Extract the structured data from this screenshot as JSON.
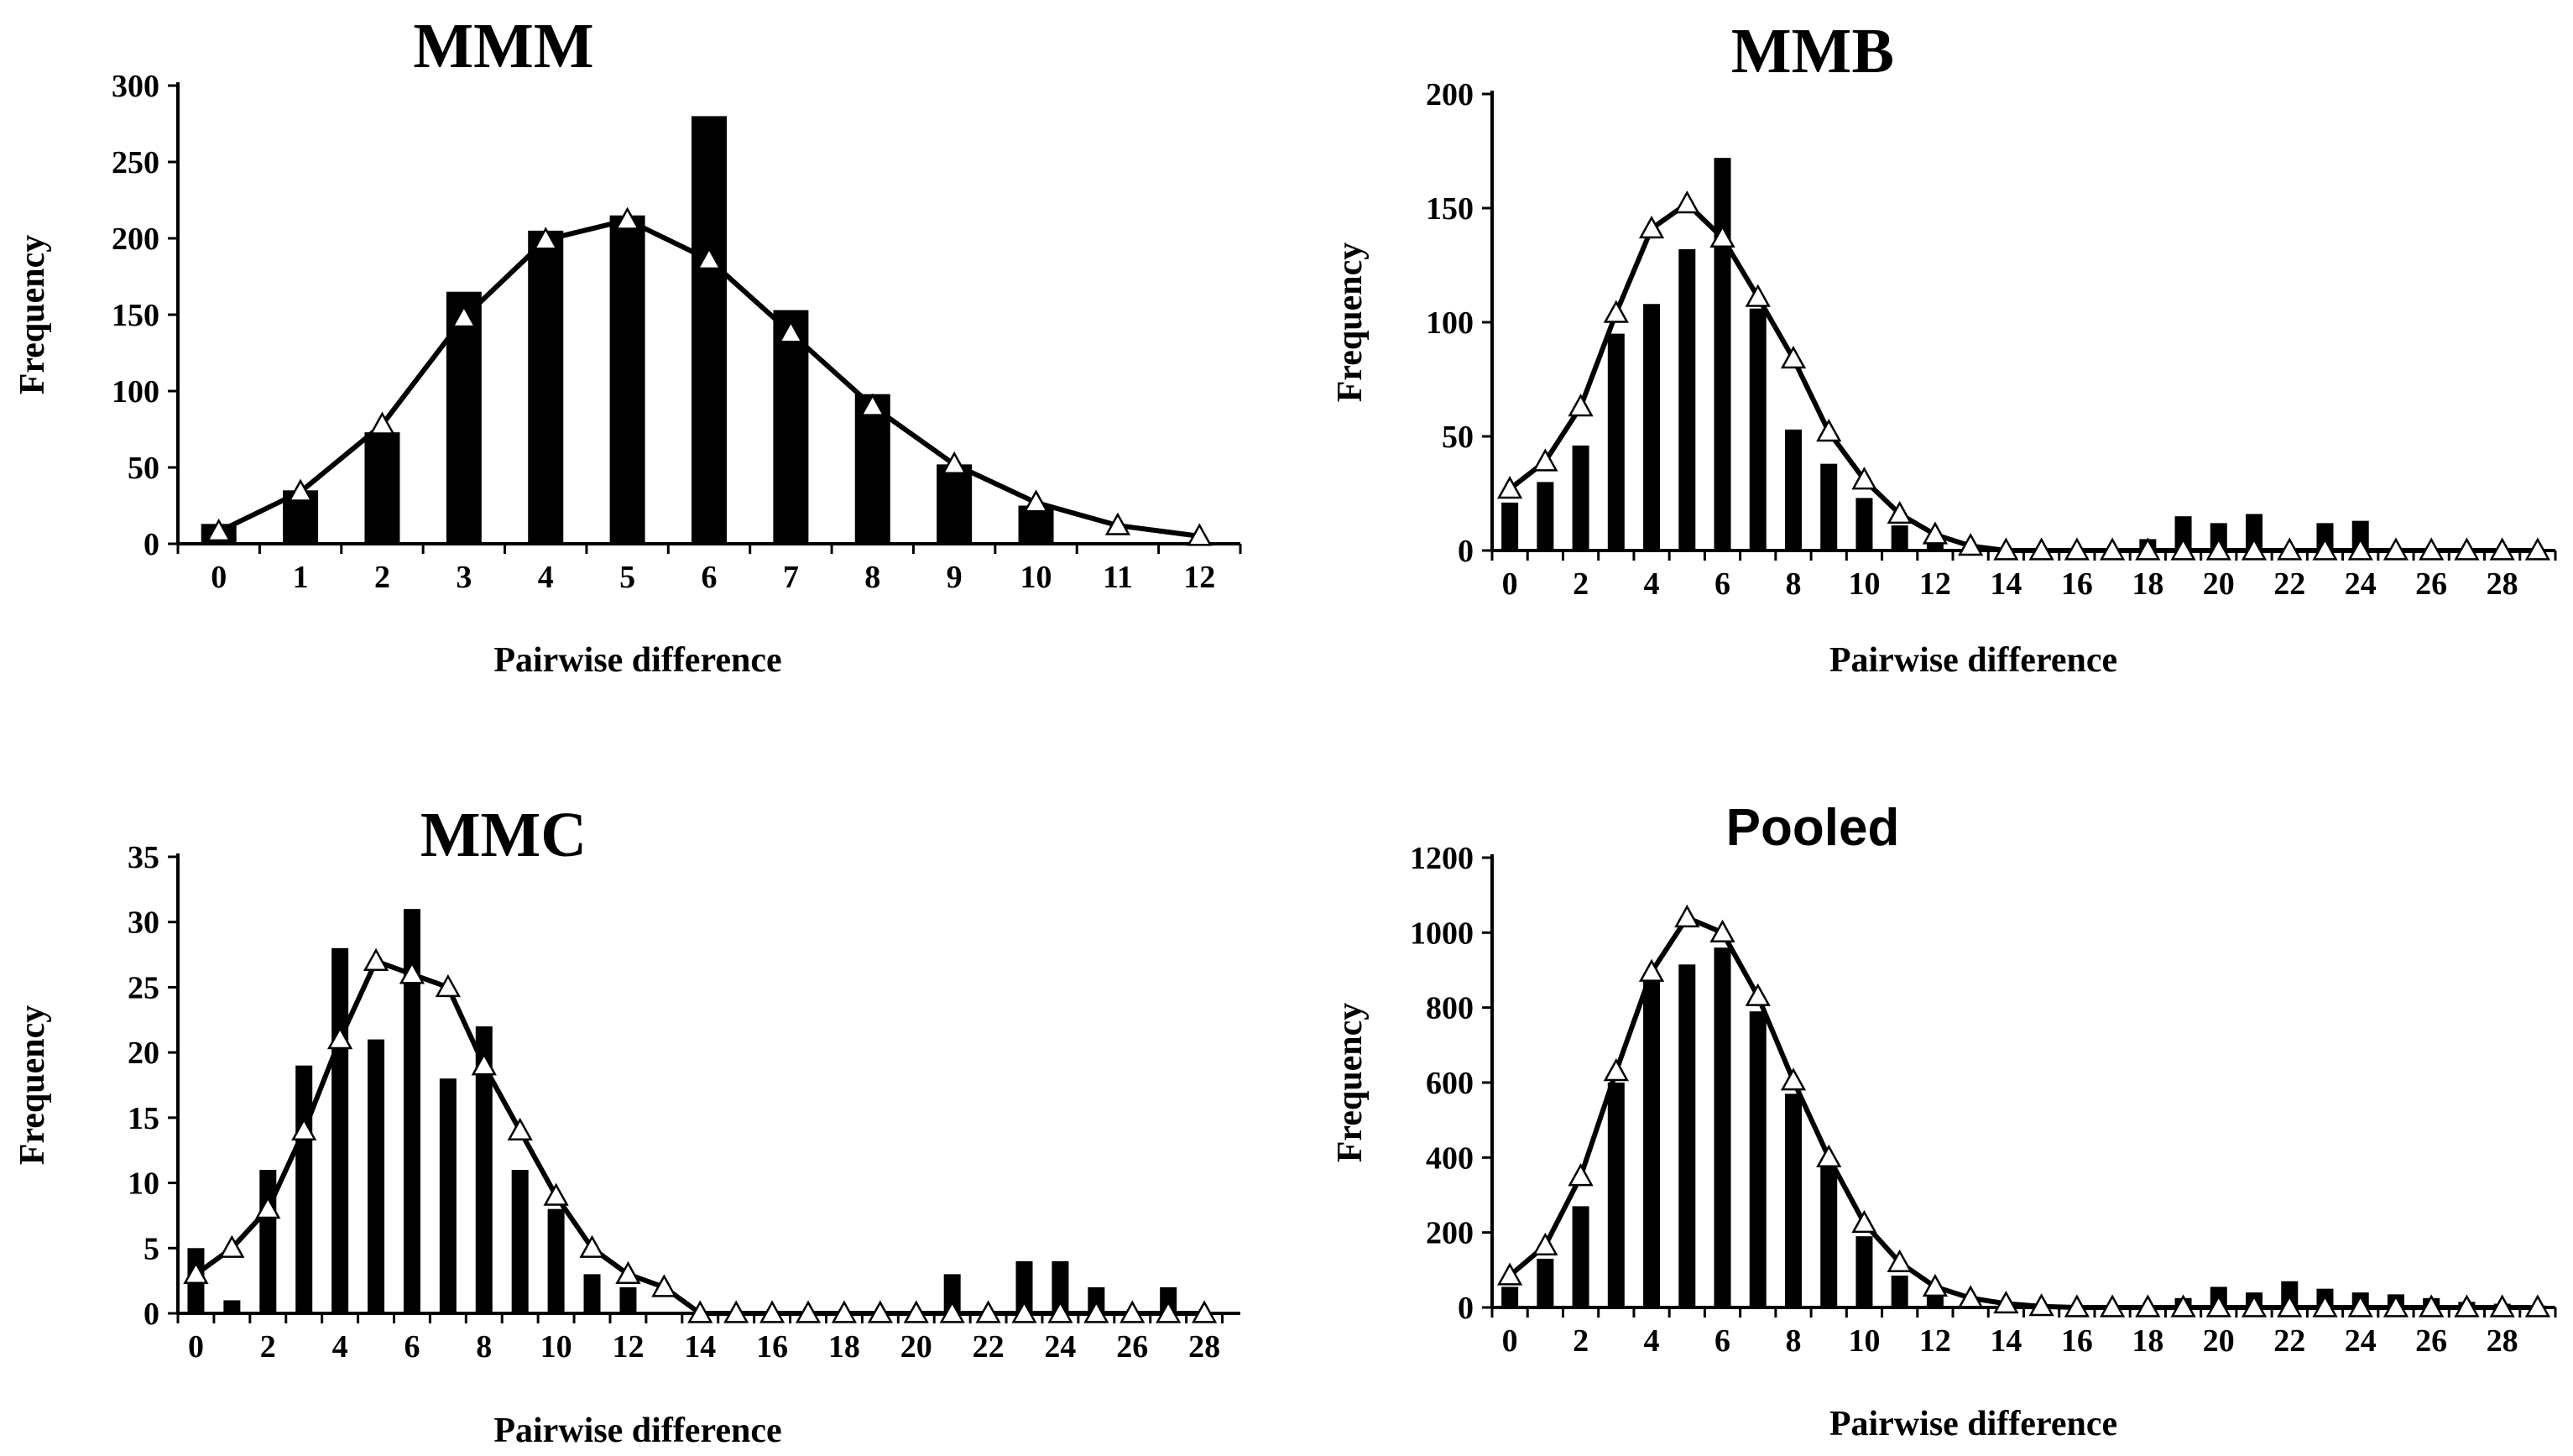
{
  "chart_data": [
    {
      "type": "bar",
      "title": "MMM",
      "xlabel": "Pairwise difference",
      "ylabel": "Frequency",
      "ylim": [
        0,
        300
      ],
      "yticks": [
        0,
        50,
        100,
        150,
        200,
        250,
        300
      ],
      "x": [
        0,
        1,
        2,
        3,
        4,
        5,
        6,
        7,
        8,
        9,
        10,
        11,
        12
      ],
      "xticks": [
        0,
        1,
        2,
        3,
        4,
        5,
        6,
        7,
        8,
        9,
        10,
        11,
        12
      ],
      "grid": false,
      "series": [
        {
          "kind": "bar",
          "values": [
            13,
            35,
            73,
            165,
            205,
            215,
            280,
            153,
            98,
            52,
            25,
            0,
            0
          ]
        },
        {
          "kind": "line",
          "values": [
            8,
            34,
            78,
            148,
            199,
            212,
            186,
            138,
            90,
            52,
            27,
            12,
            5
          ]
        }
      ]
    },
    {
      "type": "bar",
      "title": "MMB",
      "xlabel": "Pairwise difference",
      "ylabel": "Frequency",
      "ylim": [
        0,
        200
      ],
      "yticks": [
        0,
        50,
        100,
        150,
        200
      ],
      "x": [
        0,
        1,
        2,
        3,
        4,
        5,
        6,
        7,
        8,
        9,
        10,
        11,
        12,
        13,
        14,
        15,
        16,
        17,
        18,
        19,
        20,
        21,
        22,
        23,
        24,
        25,
        26,
        27,
        28,
        29
      ],
      "xticks": [
        0,
        2,
        4,
        6,
        8,
        10,
        12,
        14,
        16,
        18,
        20,
        22,
        24,
        26,
        28
      ],
      "grid": false,
      "series": [
        {
          "kind": "bar",
          "values": [
            21,
            30,
            46,
            95,
            108,
            132,
            172,
            106,
            53,
            38,
            23,
            11,
            3,
            0,
            0,
            0,
            0,
            0,
            5,
            15,
            12,
            16,
            0,
            12,
            13,
            0,
            0,
            0,
            0,
            0
          ]
        },
        {
          "kind": "line",
          "values": [
            27,
            39,
            63,
            104,
            141,
            152,
            137,
            111,
            84,
            52,
            31,
            16,
            7,
            2,
            0,
            0,
            0,
            0,
            0,
            0,
            0,
            0,
            0,
            0,
            0,
            0,
            0,
            0,
            0,
            0
          ]
        }
      ]
    },
    {
      "type": "bar",
      "title": "MMC",
      "xlabel": "Pairwise difference",
      "ylabel": "Frequency",
      "ylim": [
        0,
        35
      ],
      "yticks": [
        0,
        5,
        10,
        15,
        20,
        25,
        30,
        35
      ],
      "x": [
        0,
        1,
        2,
        3,
        4,
        5,
        6,
        7,
        8,
        9,
        10,
        11,
        12,
        13,
        14,
        15,
        16,
        17,
        18,
        19,
        20,
        21,
        22,
        23,
        24,
        25,
        26,
        27,
        28
      ],
      "xticks": [
        0,
        2,
        4,
        6,
        8,
        10,
        12,
        14,
        16,
        18,
        20,
        22,
        24,
        26,
        28
      ],
      "grid": false,
      "series": [
        {
          "kind": "bar",
          "values": [
            5,
            1,
            11,
            19,
            28,
            21,
            31,
            18,
            22,
            11,
            8,
            3,
            2,
            0,
            0,
            0,
            0,
            0,
            0,
            0,
            0,
            3,
            0,
            4,
            4,
            2,
            0,
            2,
            0
          ]
        },
        {
          "kind": "line",
          "values": [
            3,
            5,
            8,
            14,
            21,
            27,
            26,
            25,
            19,
            14,
            9,
            5,
            3,
            2,
            0,
            0,
            0,
            0,
            0,
            0,
            0,
            0,
            0,
            0,
            0,
            0,
            0,
            0,
            0
          ]
        }
      ]
    },
    {
      "type": "bar",
      "title": "Pooled",
      "xlabel": "Pairwise difference",
      "ylabel": "Frequency",
      "ylim": [
        0,
        1200
      ],
      "yticks": [
        0,
        200,
        400,
        600,
        800,
        1000,
        1200
      ],
      "x": [
        0,
        1,
        2,
        3,
        4,
        5,
        6,
        7,
        8,
        9,
        10,
        11,
        12,
        13,
        14,
        15,
        16,
        17,
        18,
        19,
        20,
        21,
        22,
        23,
        24,
        25,
        26,
        27,
        28,
        29
      ],
      "xticks": [
        0,
        2,
        4,
        6,
        8,
        10,
        12,
        14,
        16,
        18,
        20,
        22,
        24,
        26,
        28
      ],
      "grid": false,
      "series": [
        {
          "kind": "bar",
          "values": [
            55,
            130,
            270,
            600,
            870,
            915,
            960,
            790,
            570,
            380,
            190,
            85,
            35,
            10,
            0,
            0,
            0,
            0,
            5,
            25,
            55,
            40,
            70,
            50,
            40,
            35,
            25,
            15,
            10,
            5
          ]
        },
        {
          "kind": "line",
          "values": [
            85,
            165,
            350,
            630,
            895,
            1040,
            1000,
            830,
            605,
            400,
            225,
            120,
            55,
            25,
            10,
            3,
            0,
            0,
            0,
            0,
            0,
            0,
            0,
            0,
            0,
            0,
            0,
            0,
            0,
            0
          ]
        }
      ]
    }
  ]
}
